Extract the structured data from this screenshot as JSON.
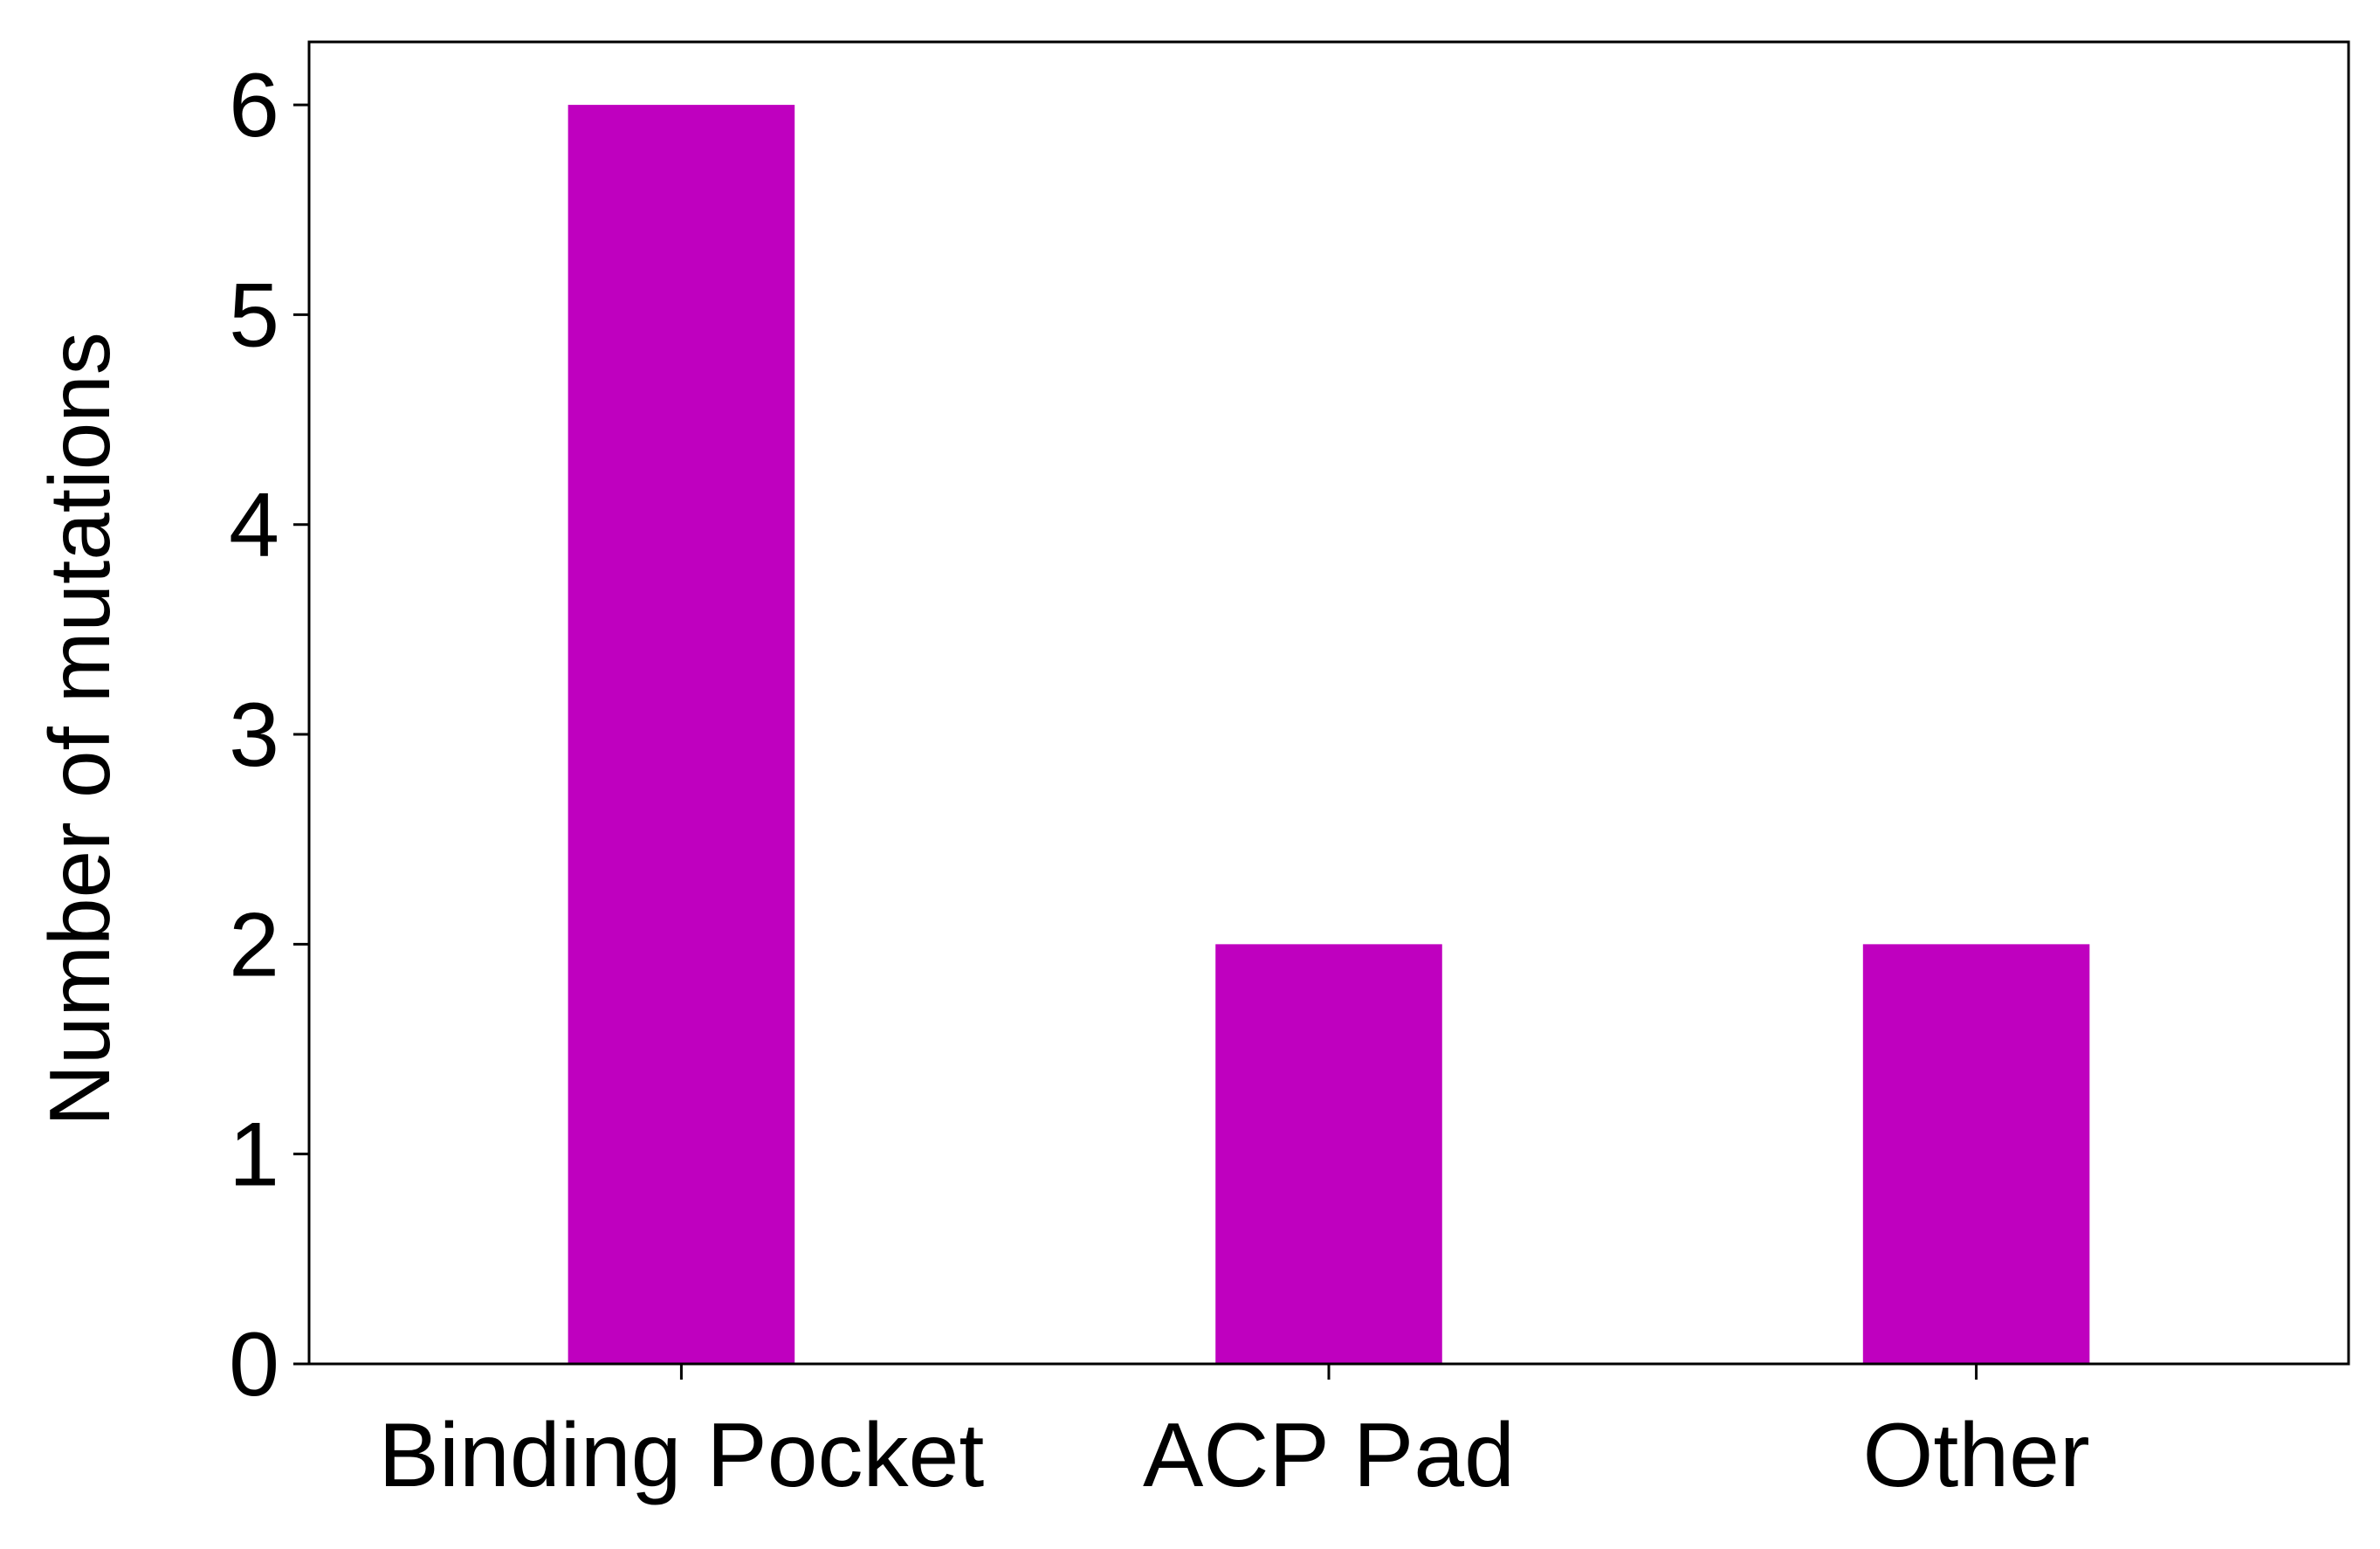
{
  "chart_data": {
    "type": "bar",
    "categories": [
      "Binding Pocket",
      "ACP Pad",
      "Other"
    ],
    "values": [
      6,
      2,
      2
    ],
    "title": "",
    "xlabel": "",
    "ylabel": "Number of mutations",
    "ylim": [
      0,
      6.3
    ],
    "yticks": [
      0,
      1,
      2,
      3,
      4,
      5,
      6
    ],
    "grid": false,
    "bar_color": "#bf00bf"
  }
}
